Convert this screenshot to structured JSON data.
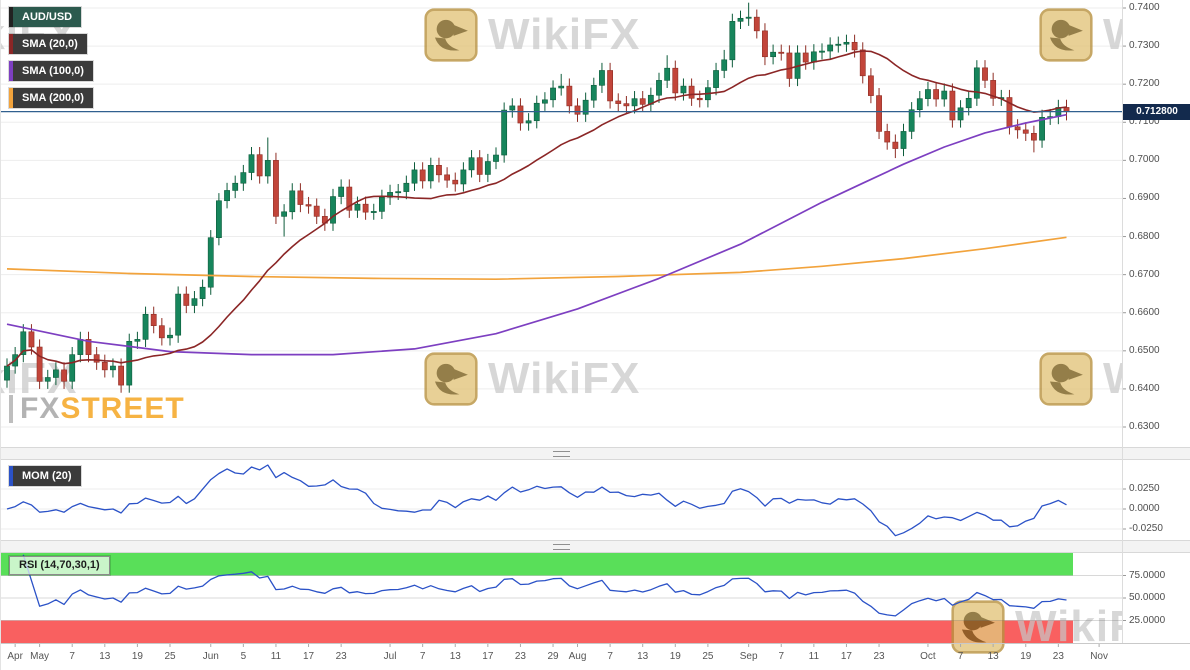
{
  "watermark": {
    "brand": "WikiFX"
  },
  "site_logo": {
    "fx": "FX",
    "street": "STREET"
  },
  "chart_data": {
    "type": "candlestick",
    "title": "AUD/USD",
    "timeframe_axis": "Apr - Nov",
    "y_ticks_main": [
      "0.7400",
      "0.7300",
      "0.7200",
      "0.7100",
      "0.7000",
      "0.6900",
      "0.6800",
      "0.6700",
      "0.6600",
      "0.6500",
      "0.6400",
      "0.6300"
    ],
    "ylim_main": [
      0.63,
      0.74
    ],
    "grid": true,
    "legend": [
      {
        "label": "AUD/USD",
        "bg": "#2c5a4e"
      },
      {
        "label": "SMA (20,0)",
        "stripe": "#8b2626"
      },
      {
        "label": "SMA (100,0)",
        "stripe": "#7d3fc1"
      },
      {
        "label": "SMA (200,0)",
        "stripe": "#f2a33c"
      }
    ],
    "price_line": {
      "value": 0.7128,
      "label": "0.712800",
      "color": "#31608f",
      "badge_bg": "#132a4d"
    },
    "candle_colors": {
      "up": "#17855c",
      "up_border": "#0d5c3b",
      "down": "#c2453a",
      "down_border": "#8e2d24"
    },
    "x_ticks": [
      {
        "label": "Apr",
        "i": 1
      },
      {
        "label": "May",
        "i": 4
      },
      {
        "label": "7",
        "i": 8
      },
      {
        "label": "13",
        "i": 12
      },
      {
        "label": "19",
        "i": 16
      },
      {
        "label": "25",
        "i": 20
      },
      {
        "label": "Jun",
        "i": 25
      },
      {
        "label": "5",
        "i": 29
      },
      {
        "label": "11",
        "i": 33
      },
      {
        "label": "17",
        "i": 37
      },
      {
        "label": "23",
        "i": 41
      },
      {
        "label": "Jul",
        "i": 47
      },
      {
        "label": "7",
        "i": 51
      },
      {
        "label": "13",
        "i": 55
      },
      {
        "label": "17",
        "i": 59
      },
      {
        "label": "23",
        "i": 63
      },
      {
        "label": "29",
        "i": 67
      },
      {
        "label": "Aug",
        "i": 70
      },
      {
        "label": "7",
        "i": 74
      },
      {
        "label": "13",
        "i": 78
      },
      {
        "label": "19",
        "i": 82
      },
      {
        "label": "25",
        "i": 86
      },
      {
        "label": "Sep",
        "i": 91
      },
      {
        "label": "7",
        "i": 95
      },
      {
        "label": "11",
        "i": 99
      },
      {
        "label": "17",
        "i": 103
      },
      {
        "label": "23",
        "i": 107
      },
      {
        "label": "Oct",
        "i": 113
      },
      {
        "label": "7",
        "i": 117
      },
      {
        "label": "13",
        "i": 121
      },
      {
        "label": "19",
        "i": 125
      },
      {
        "label": "23",
        "i": 129
      },
      {
        "label": "Nov",
        "i": 134
      }
    ],
    "candles": [
      [
        0.6423,
        0.648,
        0.6403,
        0.646
      ],
      [
        0.646,
        0.651,
        0.644,
        0.649
      ],
      [
        0.649,
        0.657,
        0.647,
        0.655
      ],
      [
        0.655,
        0.657,
        0.649,
        0.651
      ],
      [
        0.651,
        0.653,
        0.64,
        0.642
      ],
      [
        0.642,
        0.645,
        0.64,
        0.643
      ],
      [
        0.643,
        0.647,
        0.641,
        0.645
      ],
      [
        0.645,
        0.647,
        0.64,
        0.642
      ],
      [
        0.642,
        0.651,
        0.64,
        0.649
      ],
      [
        0.649,
        0.655,
        0.647,
        0.653
      ],
      [
        0.653,
        0.655,
        0.647,
        0.649
      ],
      [
        0.649,
        0.651,
        0.645,
        0.647
      ],
      [
        0.647,
        0.649,
        0.643,
        0.645
      ],
      [
        0.645,
        0.648,
        0.643,
        0.646
      ],
      [
        0.646,
        0.648,
        0.639,
        0.641
      ],
      [
        0.641,
        0.6545,
        0.639,
        0.6525
      ],
      [
        0.6525,
        0.655,
        0.6505,
        0.653
      ],
      [
        0.653,
        0.6616,
        0.651,
        0.6596
      ],
      [
        0.6596,
        0.6616,
        0.6546,
        0.6566
      ],
      [
        0.6566,
        0.6586,
        0.6514,
        0.6534
      ],
      [
        0.6534,
        0.6561,
        0.6514,
        0.6541
      ],
      [
        0.6541,
        0.6669,
        0.6521,
        0.6649
      ],
      [
        0.6649,
        0.6669,
        0.6599,
        0.6619
      ],
      [
        0.6619,
        0.6657,
        0.6599,
        0.6637
      ],
      [
        0.6637,
        0.6687,
        0.6617,
        0.6667
      ],
      [
        0.6667,
        0.6817,
        0.6647,
        0.6797
      ],
      [
        0.6797,
        0.6914,
        0.6777,
        0.6894
      ],
      [
        0.6894,
        0.6941,
        0.6874,
        0.6921
      ],
      [
        0.6921,
        0.696,
        0.6901,
        0.694
      ],
      [
        0.694,
        0.6988,
        0.692,
        0.6968
      ],
      [
        0.6968,
        0.7035,
        0.6948,
        0.7015
      ],
      [
        0.7015,
        0.7035,
        0.6939,
        0.6959
      ],
      [
        0.6959,
        0.706,
        0.6939,
        0.7
      ],
      [
        0.7,
        0.702,
        0.6833,
        0.6853
      ],
      [
        0.6853,
        0.6885,
        0.68,
        0.6865
      ],
      [
        0.6865,
        0.694,
        0.6845,
        0.692
      ],
      [
        0.692,
        0.694,
        0.6864,
        0.6884
      ],
      [
        0.6884,
        0.6904,
        0.686,
        0.688
      ],
      [
        0.688,
        0.69,
        0.6833,
        0.6853
      ],
      [
        0.6853,
        0.6873,
        0.6815,
        0.6835
      ],
      [
        0.6835,
        0.6925,
        0.6815,
        0.6905
      ],
      [
        0.6905,
        0.695,
        0.6885,
        0.693
      ],
      [
        0.693,
        0.695,
        0.6849,
        0.6869
      ],
      [
        0.6869,
        0.6905,
        0.6849,
        0.6885
      ],
      [
        0.6885,
        0.6905,
        0.6844,
        0.6864
      ],
      [
        0.6864,
        0.6886,
        0.6844,
        0.6866
      ],
      [
        0.6866,
        0.6923,
        0.6846,
        0.6903
      ],
      [
        0.6903,
        0.6936,
        0.6883,
        0.6916
      ],
      [
        0.6916,
        0.6938,
        0.6896,
        0.6918
      ],
      [
        0.6918,
        0.696,
        0.6898,
        0.694
      ],
      [
        0.694,
        0.6995,
        0.692,
        0.6975
      ],
      [
        0.6975,
        0.6995,
        0.6926,
        0.6946
      ],
      [
        0.6946,
        0.7007,
        0.6926,
        0.6987
      ],
      [
        0.6987,
        0.7007,
        0.6942,
        0.6962
      ],
      [
        0.6962,
        0.6982,
        0.6928,
        0.6948
      ],
      [
        0.6948,
        0.6968,
        0.6918,
        0.6938
      ],
      [
        0.6938,
        0.6995,
        0.6918,
        0.6975
      ],
      [
        0.6975,
        0.7027,
        0.6955,
        0.7007
      ],
      [
        0.7007,
        0.7027,
        0.6943,
        0.6963
      ],
      [
        0.6963,
        0.7017,
        0.6943,
        0.6997
      ],
      [
        0.6997,
        0.7034,
        0.6977,
        0.7014
      ],
      [
        0.7014,
        0.7152,
        0.6994,
        0.7132
      ],
      [
        0.7132,
        0.7163,
        0.7112,
        0.7143
      ],
      [
        0.7143,
        0.7163,
        0.7078,
        0.7098
      ],
      [
        0.7098,
        0.7124,
        0.7078,
        0.7104
      ],
      [
        0.7104,
        0.717,
        0.7084,
        0.715
      ],
      [
        0.715,
        0.7179,
        0.713,
        0.7159
      ],
      [
        0.7159,
        0.721,
        0.7139,
        0.719
      ],
      [
        0.719,
        0.7227,
        0.717,
        0.7195
      ],
      [
        0.7195,
        0.7215,
        0.7123,
        0.7143
      ],
      [
        0.7143,
        0.7163,
        0.7101,
        0.7121
      ],
      [
        0.7121,
        0.7178,
        0.7101,
        0.7158
      ],
      [
        0.7158,
        0.7217,
        0.7138,
        0.7197
      ],
      [
        0.7197,
        0.7256,
        0.7177,
        0.7236
      ],
      [
        0.7236,
        0.7256,
        0.7136,
        0.7156
      ],
      [
        0.7156,
        0.7176,
        0.7129,
        0.7149
      ],
      [
        0.7149,
        0.7169,
        0.7123,
        0.7143
      ],
      [
        0.7143,
        0.7182,
        0.7123,
        0.7162
      ],
      [
        0.7162,
        0.7182,
        0.7127,
        0.7147
      ],
      [
        0.7147,
        0.7191,
        0.7127,
        0.7171
      ],
      [
        0.7171,
        0.723,
        0.7151,
        0.721
      ],
      [
        0.721,
        0.7276,
        0.719,
        0.7242
      ],
      [
        0.7242,
        0.7262,
        0.7157,
        0.7177
      ],
      [
        0.7177,
        0.7215,
        0.7157,
        0.7195
      ],
      [
        0.7195,
        0.7215,
        0.7143,
        0.7163
      ],
      [
        0.7163,
        0.7183,
        0.7139,
        0.7159
      ],
      [
        0.7159,
        0.7211,
        0.7139,
        0.7191
      ],
      [
        0.7191,
        0.7256,
        0.7171,
        0.7236
      ],
      [
        0.7236,
        0.729,
        0.7216,
        0.7264
      ],
      [
        0.7264,
        0.7385,
        0.7244,
        0.7365
      ],
      [
        0.7365,
        0.7393,
        0.7345,
        0.7373
      ],
      [
        0.7373,
        0.7414,
        0.7353,
        0.7376
      ],
      [
        0.7376,
        0.7396,
        0.732,
        0.734
      ],
      [
        0.734,
        0.736,
        0.725,
        0.7272
      ],
      [
        0.7272,
        0.7304,
        0.7252,
        0.7284
      ],
      [
        0.7284,
        0.7304,
        0.7262,
        0.7282
      ],
      [
        0.7282,
        0.7302,
        0.7193,
        0.7215
      ],
      [
        0.7215,
        0.7302,
        0.7195,
        0.7282
      ],
      [
        0.7282,
        0.7302,
        0.7238,
        0.7258
      ],
      [
        0.7258,
        0.7305,
        0.7238,
        0.7285
      ],
      [
        0.7285,
        0.7307,
        0.7265,
        0.7287
      ],
      [
        0.7287,
        0.7323,
        0.7267,
        0.7303
      ],
      [
        0.7303,
        0.7325,
        0.7283,
        0.7305
      ],
      [
        0.7305,
        0.733,
        0.7285,
        0.731
      ],
      [
        0.731,
        0.733,
        0.727,
        0.729
      ],
      [
        0.729,
        0.731,
        0.7202,
        0.7222
      ],
      [
        0.7222,
        0.7242,
        0.715,
        0.717
      ],
      [
        0.717,
        0.719,
        0.7056,
        0.7076
      ],
      [
        0.7076,
        0.7096,
        0.7028,
        0.7048
      ],
      [
        0.7048,
        0.7068,
        0.7006,
        0.7031
      ],
      [
        0.7031,
        0.7096,
        0.7011,
        0.7076
      ],
      [
        0.7076,
        0.7153,
        0.7056,
        0.7133
      ],
      [
        0.7133,
        0.7182,
        0.7113,
        0.7162
      ],
      [
        0.7162,
        0.7206,
        0.7142,
        0.7186
      ],
      [
        0.7186,
        0.7206,
        0.7141,
        0.7161
      ],
      [
        0.7161,
        0.7202,
        0.7141,
        0.7182
      ],
      [
        0.7182,
        0.7202,
        0.7086,
        0.7106
      ],
      [
        0.7106,
        0.7158,
        0.7086,
        0.7138
      ],
      [
        0.7138,
        0.7183,
        0.7118,
        0.7163
      ],
      [
        0.7163,
        0.7263,
        0.7143,
        0.7243
      ],
      [
        0.7243,
        0.7263,
        0.719,
        0.721
      ],
      [
        0.721,
        0.723,
        0.7143,
        0.7163
      ],
      [
        0.7163,
        0.7185,
        0.7143,
        0.7165
      ],
      [
        0.7165,
        0.7185,
        0.7068,
        0.7088
      ],
      [
        0.7088,
        0.7108,
        0.7057,
        0.708
      ],
      [
        0.708,
        0.71,
        0.7051,
        0.7071
      ],
      [
        0.7071,
        0.7091,
        0.7021,
        0.7053
      ],
      [
        0.7053,
        0.7133,
        0.7033,
        0.7113
      ],
      [
        0.7113,
        0.7135,
        0.7093,
        0.7115
      ],
      [
        0.7115,
        0.7159,
        0.7095,
        0.7139
      ],
      [
        0.7139,
        0.7159,
        0.7105,
        0.7128
      ]
    ],
    "sma_overlays": [
      {
        "label": "SMA (20,0)",
        "period": 20,
        "color": "#8b2626"
      },
      {
        "label": "SMA (100,0)",
        "color": "#7d3fc1",
        "points": [
          [
            0,
            0.657
          ],
          [
            10,
            0.6525
          ],
          [
            20,
            0.6498
          ],
          [
            30,
            0.649
          ],
          [
            40,
            0.649
          ],
          [
            50,
            0.6505
          ],
          [
            60,
            0.6545
          ],
          [
            70,
            0.661
          ],
          [
            80,
            0.669
          ],
          [
            90,
            0.678
          ],
          [
            100,
            0.689
          ],
          [
            105,
            0.694
          ],
          [
            110,
            0.699
          ],
          [
            115,
            0.7035
          ],
          [
            120,
            0.7072
          ],
          [
            125,
            0.7098
          ],
          [
            130,
            0.712
          ]
        ]
      },
      {
        "label": "SMA (200,0)",
        "color": "#f2a33c",
        "points": [
          [
            0,
            0.6715
          ],
          [
            15,
            0.6703
          ],
          [
            30,
            0.6695
          ],
          [
            45,
            0.669
          ],
          [
            60,
            0.6688
          ],
          [
            75,
            0.6695
          ],
          [
            90,
            0.6706
          ],
          [
            100,
            0.6722
          ],
          [
            110,
            0.6742
          ],
          [
            120,
            0.6768
          ],
          [
            130,
            0.6798
          ]
        ]
      }
    ],
    "mom_panel": {
      "label": "MOM (20)",
      "period": 20,
      "color": "#2b52c7",
      "y_ticks": [
        "0.0250",
        "0.0000",
        "-0.0250"
      ]
    },
    "rsi_panel": {
      "label": "RSI (14,70,30,1)",
      "period": 14,
      "color": "#2b52c7",
      "y_ticks": [
        "75.0000",
        "50.0000",
        "25.0000"
      ],
      "upper_band": 75,
      "lower_band": 25,
      "upper_color": "#59df59",
      "lower_color": "#f96060"
    }
  }
}
